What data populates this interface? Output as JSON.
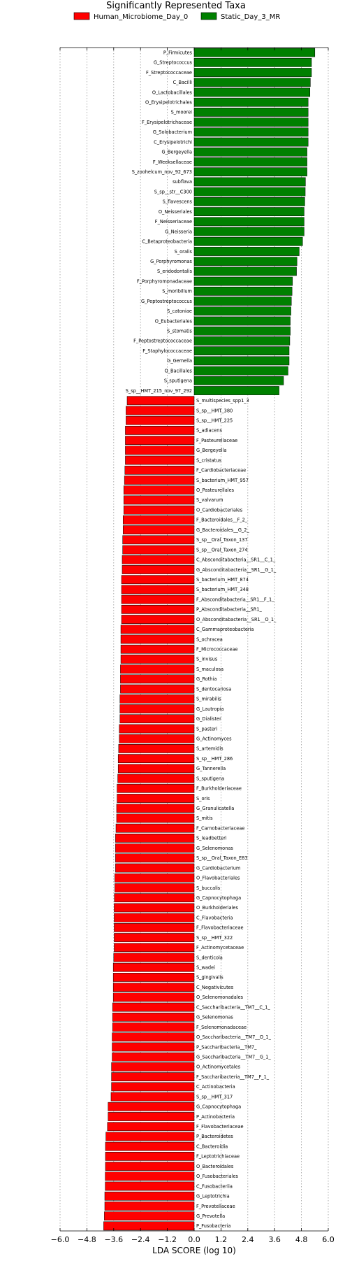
{
  "chart_data": {
    "type": "bar",
    "orientation": "horizontal",
    "title": "Significantly Represented Taxa",
    "xlabel": "LDA SCORE (log 10)",
    "ylabel": "",
    "xlim": [
      -6.0,
      6.0
    ],
    "xticks": [
      -6.0,
      -4.8,
      -3.6,
      -2.4,
      -1.2,
      0.0,
      1.2,
      2.4,
      3.6,
      4.8,
      6.0
    ],
    "xtick_labels": [
      "−6.0",
      "−4.8",
      "−3.6",
      "−2.4",
      "−1.2",
      "0.0",
      "1.2",
      "2.4",
      "3.6",
      "4.8",
      "6.0"
    ],
    "grid": "vertical-dotted",
    "legend_position": "top",
    "series": [
      {
        "name": "Human_Microbiome_Day_0",
        "color": "#ff0000"
      },
      {
        "name": "Static_Day_3_MR",
        "color": "#008000"
      }
    ],
    "bars": [
      {
        "label": "P_Firmicutes",
        "value": 5.4,
        "series": 1
      },
      {
        "label": "G_Streptococcus",
        "value": 5.25,
        "series": 1
      },
      {
        "label": "F_Streptococcaceae",
        "value": 5.25,
        "series": 1
      },
      {
        "label": "C_Bacilli",
        "value": 5.2,
        "series": 1
      },
      {
        "label": "O_Lactobacillales",
        "value": 5.18,
        "series": 1
      },
      {
        "label": "O_Erysipelotrichales",
        "value": 5.1,
        "series": 1
      },
      {
        "label": "S_moorei",
        "value": 5.1,
        "series": 1
      },
      {
        "label": "F_Erysipelotrichaceae",
        "value": 5.1,
        "series": 1
      },
      {
        "label": "G_Solobacterium",
        "value": 5.1,
        "series": 1
      },
      {
        "label": "C_Erysipelotrichi",
        "value": 5.1,
        "series": 1
      },
      {
        "label": "G_Bergeyella",
        "value": 5.05,
        "series": 1
      },
      {
        "label": "F_Weeksellaceae",
        "value": 5.05,
        "series": 1
      },
      {
        "label": "S_zoohelcum_nov_92_673",
        "value": 5.05,
        "series": 1
      },
      {
        "label": "subflava",
        "value": 4.98,
        "series": 1
      },
      {
        "label": "S_sp__str__C300",
        "value": 4.97,
        "series": 1
      },
      {
        "label": "S_flavescens",
        "value": 4.95,
        "series": 1
      },
      {
        "label": "O_Neisseriales",
        "value": 4.92,
        "series": 1
      },
      {
        "label": "F_Neisseriaceae",
        "value": 4.92,
        "series": 1
      },
      {
        "label": "G_Neisseria",
        "value": 4.92,
        "series": 1
      },
      {
        "label": "C_Betaproteobacteria",
        "value": 4.85,
        "series": 1
      },
      {
        "label": "S_oralis",
        "value": 4.7,
        "series": 1
      },
      {
        "label": "G_Porphyromonas",
        "value": 4.6,
        "series": 1
      },
      {
        "label": "S_endodontalis",
        "value": 4.58,
        "series": 1
      },
      {
        "label": "F_Porphyromonadaceae",
        "value": 4.4,
        "series": 1
      },
      {
        "label": "S_moribillum",
        "value": 4.38,
        "series": 1
      },
      {
        "label": "G_Peptostreptococcus",
        "value": 4.35,
        "series": 1
      },
      {
        "label": "S_catoniae",
        "value": 4.33,
        "series": 1
      },
      {
        "label": "O_Eubacteriales",
        "value": 4.3,
        "series": 1
      },
      {
        "label": "S_stomatis",
        "value": 4.3,
        "series": 1
      },
      {
        "label": "F_Peptostreptococcaceae",
        "value": 4.28,
        "series": 1
      },
      {
        "label": "F_Staphylococcaceae",
        "value": 4.25,
        "series": 1
      },
      {
        "label": "G_Gemella",
        "value": 4.25,
        "series": 1
      },
      {
        "label": "O_Bacillales",
        "value": 4.2,
        "series": 1
      },
      {
        "label": "S_sputigena",
        "value": 4.0,
        "series": 1
      },
      {
        "label": "S_sp__HMT_215_nov_97_292",
        "value": 3.8,
        "series": 1
      },
      {
        "label": "S_multispecies_spp1_3",
        "value": -3.0,
        "series": 0
      },
      {
        "label": "S_sp__HMT_380",
        "value": -3.05,
        "series": 0
      },
      {
        "label": "S_sp__HMT_225",
        "value": -3.05,
        "series": 0
      },
      {
        "label": "S_adiacens",
        "value": -3.08,
        "series": 0
      },
      {
        "label": "F_Pasteurellaceae",
        "value": -3.08,
        "series": 0
      },
      {
        "label": "G_Bergeyella",
        "value": -3.08,
        "series": 0
      },
      {
        "label": "S_cristatus",
        "value": -3.08,
        "series": 0
      },
      {
        "label": "F_Cardiobacteriaceae",
        "value": -3.1,
        "series": 0
      },
      {
        "label": "S_bacterium_HMT_957",
        "value": -3.12,
        "series": 0
      },
      {
        "label": "O_Pasteurellales",
        "value": -3.15,
        "series": 0
      },
      {
        "label": "S_valvarum",
        "value": -3.15,
        "series": 0
      },
      {
        "label": "O_Cardiobacteriales",
        "value": -3.15,
        "series": 0
      },
      {
        "label": "F_Bacteroidales__F_2_",
        "value": -3.18,
        "series": 0
      },
      {
        "label": "G_Bacteroidales__G_2_",
        "value": -3.18,
        "series": 0
      },
      {
        "label": "S_sp__Oral_Taxon_137",
        "value": -3.2,
        "series": 0
      },
      {
        "label": "S_sp__Oral_Taxon_274",
        "value": -3.2,
        "series": 0
      },
      {
        "label": "C_Absconditabacteria__SR1__C_1_",
        "value": -3.22,
        "series": 0
      },
      {
        "label": "G_Absconditabacteria__SR1__G_1_",
        "value": -3.22,
        "series": 0
      },
      {
        "label": "S_bacterium_HMT_874",
        "value": -3.25,
        "series": 0
      },
      {
        "label": "S_bacterium_HMT_348",
        "value": -3.25,
        "series": 0
      },
      {
        "label": "F_Absconditabacteria__SR1__F_1_",
        "value": -3.25,
        "series": 0
      },
      {
        "label": "P_Absconditabacteria__SR1_",
        "value": -3.25,
        "series": 0
      },
      {
        "label": "O_Absconditabacteria__SR1__O_1_",
        "value": -3.25,
        "series": 0
      },
      {
        "label": "C_Gammaproteobacteria",
        "value": -3.28,
        "series": 0
      },
      {
        "label": "S_ochracea",
        "value": -3.28,
        "series": 0
      },
      {
        "label": "F_Micrococcaceae",
        "value": -3.28,
        "series": 0
      },
      {
        "label": "S_invisus",
        "value": -3.28,
        "series": 0
      },
      {
        "label": "S_maculosa",
        "value": -3.3,
        "series": 0
      },
      {
        "label": "G_Rothia",
        "value": -3.3,
        "series": 0
      },
      {
        "label": "S_dentocariosa",
        "value": -3.3,
        "series": 0
      },
      {
        "label": "S_mirabilis",
        "value": -3.32,
        "series": 0
      },
      {
        "label": "G_Lautropia",
        "value": -3.32,
        "series": 0
      },
      {
        "label": "G_Dialister",
        "value": -3.32,
        "series": 0
      },
      {
        "label": "S_pasteri",
        "value": -3.35,
        "series": 0
      },
      {
        "label": "G_Actinomyces",
        "value": -3.35,
        "series": 0
      },
      {
        "label": "S_artemidis",
        "value": -3.38,
        "series": 0
      },
      {
        "label": "S_sp__HMT_286",
        "value": -3.4,
        "series": 0
      },
      {
        "label": "G_Tannerella",
        "value": -3.4,
        "series": 0
      },
      {
        "label": "S_sputigena",
        "value": -3.42,
        "series": 0
      },
      {
        "label": "F_Burkholderiaceae",
        "value": -3.45,
        "series": 0
      },
      {
        "label": "S_oris",
        "value": -3.45,
        "series": 0
      },
      {
        "label": "G_Granulicatella",
        "value": -3.47,
        "series": 0
      },
      {
        "label": "S_mitis",
        "value": -3.47,
        "series": 0
      },
      {
        "label": "F_Carnobacteriaceae",
        "value": -3.5,
        "series": 0
      },
      {
        "label": "S_leadbetteri",
        "value": -3.52,
        "series": 0
      },
      {
        "label": "G_Selenomonas",
        "value": -3.52,
        "series": 0
      },
      {
        "label": "S_sp__Oral_Taxon_E83",
        "value": -3.52,
        "series": 0
      },
      {
        "label": "G_Cardiobacterium",
        "value": -3.52,
        "series": 0
      },
      {
        "label": "O_Flavobacteriales",
        "value": -3.55,
        "series": 0
      },
      {
        "label": "S_buccalis",
        "value": -3.55,
        "series": 0
      },
      {
        "label": "G_Capnocytophaga",
        "value": -3.57,
        "series": 0
      },
      {
        "label": "O_Burkholderiales",
        "value": -3.58,
        "series": 0
      },
      {
        "label": "C_Flavobacteria",
        "value": -3.58,
        "series": 0
      },
      {
        "label": "F_Flavobacteriaceae",
        "value": -3.58,
        "series": 0
      },
      {
        "label": "S_sp__HMT_322",
        "value": -3.58,
        "series": 0
      },
      {
        "label": "F_Actinomycetaceae",
        "value": -3.58,
        "series": 0
      },
      {
        "label": "S_denticola",
        "value": -3.6,
        "series": 0
      },
      {
        "label": "S_wadei",
        "value": -3.62,
        "series": 0
      },
      {
        "label": "S_gingivalis",
        "value": -3.62,
        "series": 0
      },
      {
        "label": "C_Negativicutes",
        "value": -3.62,
        "series": 0
      },
      {
        "label": "O_Selenomonadales",
        "value": -3.62,
        "series": 0
      },
      {
        "label": "C_Saccharibacteria__TM7__C_1_",
        "value": -3.65,
        "series": 0
      },
      {
        "label": "G_Selenomonas",
        "value": -3.65,
        "series": 0
      },
      {
        "label": "F_Selenomonadaceae",
        "value": -3.65,
        "series": 0
      },
      {
        "label": "O_Saccharibacteria__TM7__O_1_",
        "value": -3.67,
        "series": 0
      },
      {
        "label": "P_Saccharibacteria__TM7_",
        "value": -3.67,
        "series": 0
      },
      {
        "label": "G_Saccharibacteria__TM7__G_1_",
        "value": -3.67,
        "series": 0
      },
      {
        "label": "O_Actinomycetales",
        "value": -3.7,
        "series": 0
      },
      {
        "label": "F_Saccharibacteria__TM7__F_1_",
        "value": -3.7,
        "series": 0
      },
      {
        "label": "C_Actinobacteria",
        "value": -3.7,
        "series": 0
      },
      {
        "label": "S_sp__HMT_317",
        "value": -3.72,
        "series": 0
      },
      {
        "label": "G_Capnocytophaga",
        "value": -3.85,
        "series": 0
      },
      {
        "label": "P_Actinobacteria",
        "value": -3.85,
        "series": 0
      },
      {
        "label": "F_Flavobacteriaceae",
        "value": -3.88,
        "series": 0
      },
      {
        "label": "P_Bacteroidetes",
        "value": -3.95,
        "series": 0
      },
      {
        "label": "C_Bacteroidia",
        "value": -3.97,
        "series": 0
      },
      {
        "label": "F_Leptotrichiaceae",
        "value": -3.97,
        "series": 0
      },
      {
        "label": "O_Bacteroidales",
        "value": -3.97,
        "series": 0
      },
      {
        "label": "O_Fusobacteriales",
        "value": -3.98,
        "series": 0
      },
      {
        "label": "C_Fusobacteriia",
        "value": -3.98,
        "series": 0
      },
      {
        "label": "G_Leptotrichia",
        "value": -4.0,
        "series": 0
      },
      {
        "label": "F_Prevotellaceae",
        "value": -4.0,
        "series": 0
      },
      {
        "label": "G_Prevotella",
        "value": -4.02,
        "series": 0
      },
      {
        "label": "P_Fusobacteria",
        "value": -4.05,
        "series": 0
      }
    ]
  }
}
